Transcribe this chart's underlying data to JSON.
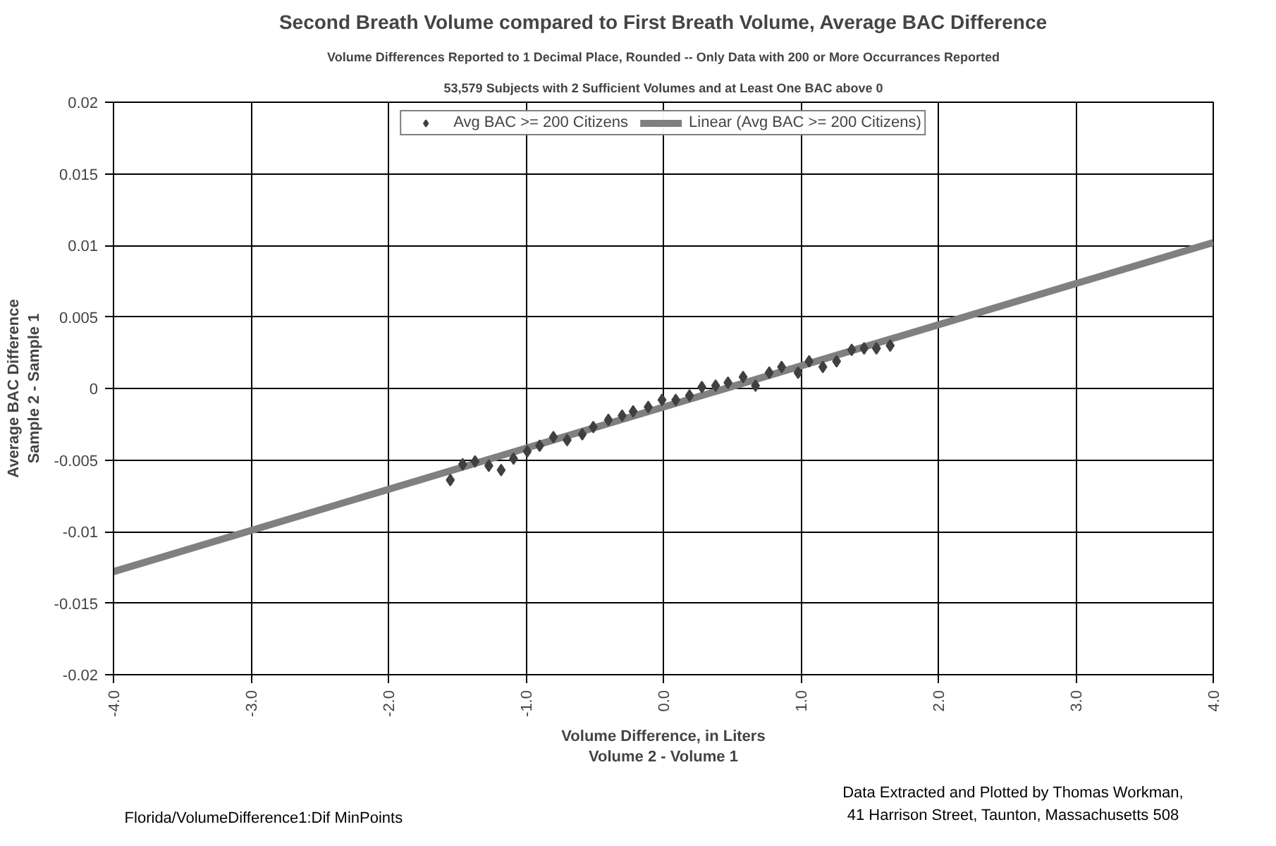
{
  "chart_data": {
    "type": "scatter",
    "title": "Second Breath Volume compared to First Breath Volume, Average BAC Difference",
    "subtitle": "Volume Differences Reported to 1 Decimal Place, Rounded -- Only Data with 200 or More Occurrances Reported",
    "xlabel": "Volume Difference, in Liters\nVolume 2 - Volume 1",
    "ylabel": "Average BAC Difference\nSample 2 - Sample 1",
    "annotations": [
      "53,579 Subjects with 2 Sufficient Volumes and at Least One BAC above 0",
      "Florida/VolumeDifference1:Dif MinPoints",
      "Data Extracted and Plotted  by Thomas Workman,\n41 Harrison Street, Taunton, Massachusetts  508"
    ],
    "xlim": [
      -4,
      4
    ],
    "ylim": [
      -0.02,
      0.02
    ],
    "xticks": [
      {
        "value": -4,
        "label": "-4.0"
      },
      {
        "value": -3,
        "label": "-3.0"
      },
      {
        "value": -2,
        "label": "-2.0"
      },
      {
        "value": -1,
        "label": "-1.0"
      },
      {
        "value": 0,
        "label": "0.0"
      },
      {
        "value": 1,
        "label": "1.0"
      },
      {
        "value": 2,
        "label": "2.0"
      },
      {
        "value": 3,
        "label": "3.0"
      },
      {
        "value": 4,
        "label": "4.0"
      }
    ],
    "yticks": [
      -0.02,
      -0.015,
      -0.01,
      -0.005,
      0,
      0.005,
      0.01,
      0.015,
      0.02
    ],
    "grid": true,
    "legend": "top",
    "series": [
      {
        "name": "Avg BAC >= 200 Citizens",
        "type": "scatter",
        "marker": "diamond",
        "color": "#404040",
        "x": [
          -1.55,
          -1.46,
          -1.37,
          -1.27,
          -1.18,
          -1.09,
          -0.99,
          -0.9,
          -0.8,
          -0.7,
          -0.59,
          -0.51,
          -0.4,
          -0.3,
          -0.22,
          -0.11,
          -0.01,
          0.09,
          0.19,
          0.28,
          0.38,
          0.47,
          0.58,
          0.67,
          0.77,
          0.86,
          0.98,
          1.06,
          1.16,
          1.26,
          1.37,
          1.46,
          1.55,
          1.65
        ],
        "values": [
          -0.0064,
          -0.0053,
          -0.0051,
          -0.0054,
          -0.0057,
          -0.0049,
          -0.0044,
          -0.004,
          -0.0034,
          -0.0036,
          -0.0032,
          -0.0027,
          -0.0022,
          -0.0019,
          -0.0016,
          -0.0013,
          -0.0008,
          -0.0008,
          -0.0005,
          0.0001,
          0.0002,
          0.0004,
          0.0008,
          0.0002,
          0.0011,
          0.0015,
          0.0011,
          0.0019,
          0.0015,
          0.0019,
          0.0027,
          0.0028,
          0.0028,
          0.003
        ]
      },
      {
        "name": "Linear (Avg BAC >= 200 Citizens)",
        "type": "line",
        "color": "#808080",
        "x": [
          -4,
          4
        ],
        "values": [
          -0.0128,
          0.0102
        ]
      }
    ]
  }
}
